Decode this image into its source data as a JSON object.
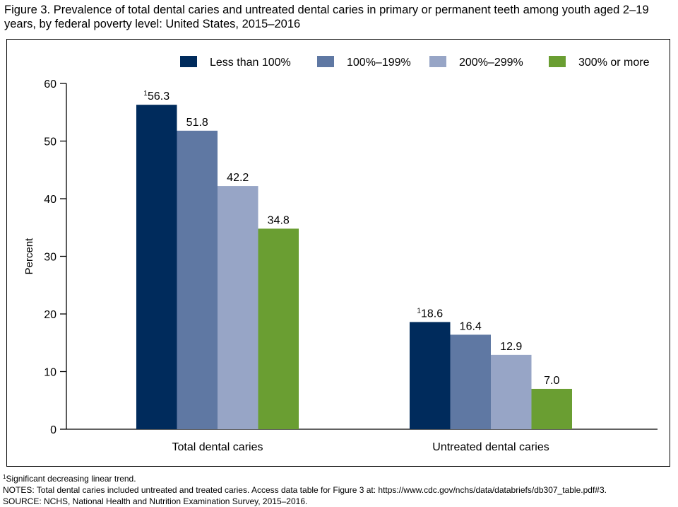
{
  "figure": {
    "title": "Figure 3. Prevalence of total dental caries and untreated dental caries in primary or permanent teeth among youth aged 2–19 years, by federal poverty level: United States, 2015–2016"
  },
  "chart_data": {
    "type": "bar",
    "ylabel": "Percent",
    "xlabel": "",
    "ylim": [
      0,
      60
    ],
    "yticks": [
      0,
      10,
      20,
      30,
      40,
      50,
      60
    ],
    "grid": false,
    "legend_position": "top",
    "categories": [
      "Total dental caries",
      "Untreated dental caries"
    ],
    "series": [
      {
        "name": "Less than 100%",
        "color": "#002b5c",
        "values": [
          56.3,
          18.6
        ],
        "labels": [
          "56.3",
          "18.6"
        ],
        "marker": [
          "1",
          "1"
        ]
      },
      {
        "name": "100%–199%",
        "color": "#5f78a3",
        "values": [
          51.8,
          16.4
        ],
        "labels": [
          "51.8",
          "16.4"
        ],
        "marker": [
          "",
          ""
        ]
      },
      {
        "name": "200%–299%",
        "color": "#97a5c6",
        "values": [
          42.2,
          12.9
        ],
        "labels": [
          "42.2",
          "12.9"
        ],
        "marker": [
          "",
          ""
        ]
      },
      {
        "name": "300% or more",
        "color": "#6a9e32",
        "values": [
          34.8,
          7.0
        ],
        "labels": [
          "34.8",
          "7.0"
        ],
        "marker": [
          "",
          ""
        ]
      }
    ]
  },
  "footnotes": {
    "note1_marker": "1",
    "note1_text": "Significant decreasing linear trend.",
    "notes": "NOTES: Total dental caries included untreated and treated caries. Access data table for Figure 3 at: https://www.cdc.gov/nchs/data/databriefs/db307_table.pdf#3.",
    "source": "SOURCE: NCHS, National Health and Nutrition Examination Survey, 2015–2016."
  }
}
